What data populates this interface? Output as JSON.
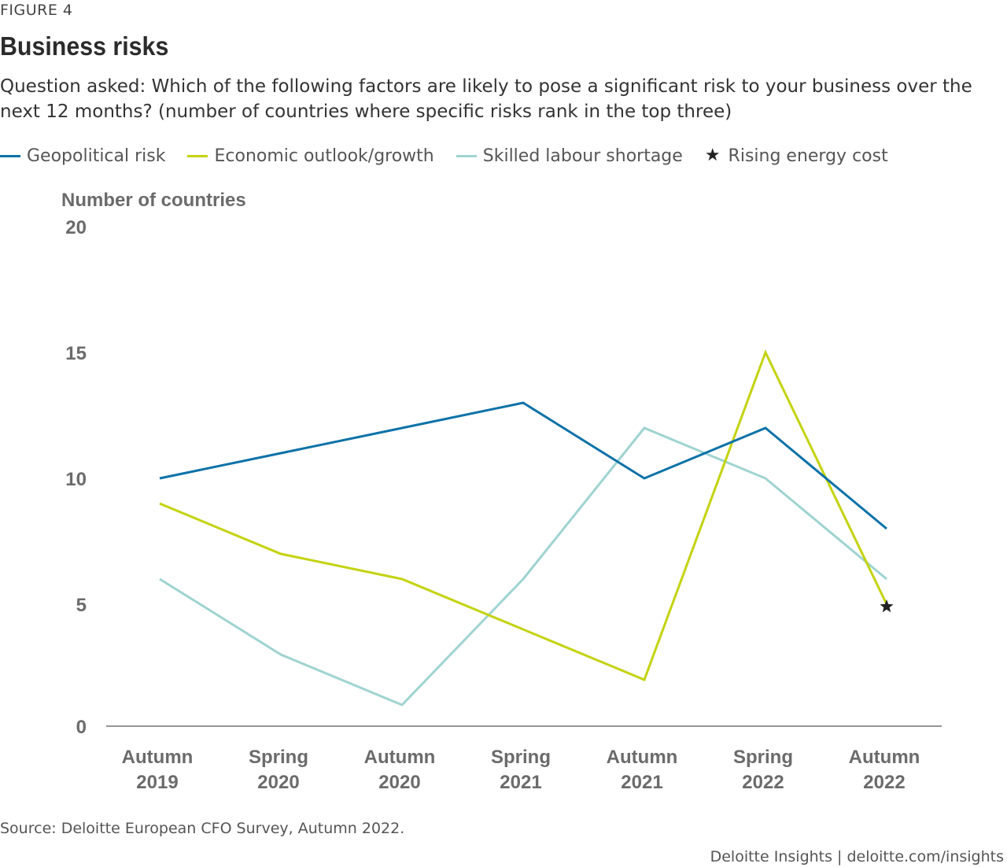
{
  "figure_label": "FIGURE 4",
  "title": "Business risks",
  "subtitle": "Question asked: Which of the following factors are likely to pose a significant risk to your business over the next 12 months? (number of countries where specific risks rank in the top three)",
  "source": "Source: Deloitte European CFO Survey, Autumn 2022.",
  "credit": "Deloitte Insights | deloitte.com/insights",
  "chart_data": {
    "type": "line",
    "ylabel": "Number of countries",
    "ylim": [
      0,
      20
    ],
    "yticks": [
      0,
      5,
      10,
      15,
      20
    ],
    "grid": false,
    "legend_position": "top",
    "categories": [
      {
        "line1": "Autumn",
        "line2": "2019"
      },
      {
        "line1": "Spring",
        "line2": "2020"
      },
      {
        "line1": "Autumn",
        "line2": "2020"
      },
      {
        "line1": "Spring",
        "line2": "2021"
      },
      {
        "line1": "Autumn",
        "line2": "2021"
      },
      {
        "line1": "Spring",
        "line2": "2022"
      },
      {
        "line1": "Autumn",
        "line2": "2022"
      }
    ],
    "series": [
      {
        "name": "Geopolitical risk",
        "color": "#0d72a8",
        "values": [
          10,
          11,
          12,
          13,
          10,
          12,
          8
        ]
      },
      {
        "name": "Economic outlook/growth",
        "color": "#c4d30f",
        "values": [
          9,
          7,
          6,
          4,
          2,
          15,
          5
        ]
      },
      {
        "name": "Skilled labour shortage",
        "color": "#9fd4d2",
        "values": [
          6,
          3,
          1,
          6,
          12,
          10,
          6
        ]
      }
    ],
    "markers": [
      {
        "name": "Rising energy cost",
        "symbol": "star-icon",
        "color": "#222222",
        "category_index": 6,
        "value": 5
      }
    ]
  }
}
